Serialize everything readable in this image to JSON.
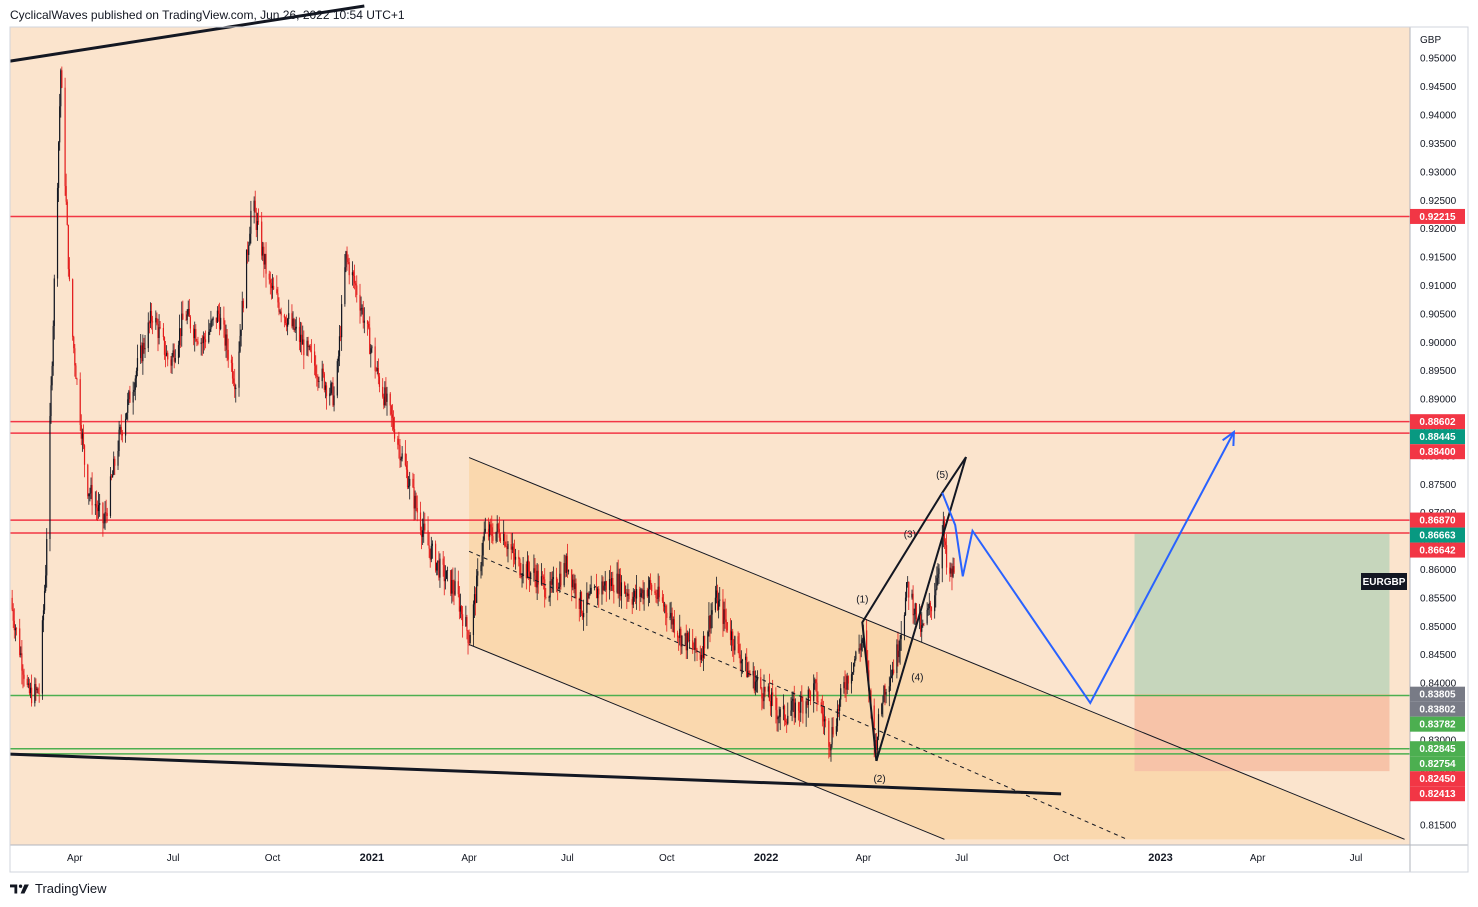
{
  "header": {
    "publisher_line": "CyclicalWaves published on TradingView.com, Jun 26, 2022 10:54 UTC+1"
  },
  "footer": {
    "brand": "TradingView",
    "logo_icon": "tradingview-logo-icon"
  },
  "colors": {
    "background": "#fbe4cd",
    "channel_fill": "#f9d6a8",
    "target_zone": "#c6d6bc",
    "stop_zone": "#f7c3a8",
    "resistance": "#f23645",
    "support": "#4caf50",
    "projection": "#2962ff",
    "candle_up": "#131722",
    "candle_down": "#e31b1b"
  },
  "chart_data": {
    "type": "candlestick",
    "symbol_label": "EURGBP",
    "currency": "GBP",
    "y_range": [
      0.8115,
      0.9555
    ],
    "y_ticks": [
      "0.95000",
      "0.94500",
      "0.94000",
      "0.93500",
      "0.93000",
      "0.92500",
      "0.92000",
      "0.91500",
      "0.91000",
      "0.90500",
      "0.90000",
      "0.89500",
      "0.89000",
      "0.88500",
      "0.88000",
      "0.87500",
      "0.87000",
      "0.86500",
      "0.86000",
      "0.85500",
      "0.85000",
      "0.84500",
      "0.84000",
      "0.83500",
      "0.83000",
      "0.82500",
      "0.82000",
      "0.81500"
    ],
    "x_range": [
      "2020-02-01",
      "2023-08-20"
    ],
    "x_ticks": [
      {
        "label": "Apr",
        "date": "2020-04-01",
        "bold": false
      },
      {
        "label": "Jul",
        "date": "2020-07-01",
        "bold": false
      },
      {
        "label": "Oct",
        "date": "2020-10-01",
        "bold": false
      },
      {
        "label": "2021",
        "date": "2021-01-01",
        "bold": true
      },
      {
        "label": "Apr",
        "date": "2021-04-01",
        "bold": false
      },
      {
        "label": "Jul",
        "date": "2021-07-01",
        "bold": false
      },
      {
        "label": "Oct",
        "date": "2021-10-01",
        "bold": false
      },
      {
        "label": "2022",
        "date": "2022-01-01",
        "bold": true
      },
      {
        "label": "Apr",
        "date": "2022-04-01",
        "bold": false
      },
      {
        "label": "Jul",
        "date": "2022-07-01",
        "bold": false
      },
      {
        "label": "Oct",
        "date": "2022-10-01",
        "bold": false
      },
      {
        "label": "2023",
        "date": "2023-01-01",
        "bold": true
      },
      {
        "label": "Apr",
        "date": "2023-04-01",
        "bold": false
      },
      {
        "label": "Jul",
        "date": "2023-07-01",
        "bold": false
      }
    ],
    "price_path": [
      [
        "2020-02-01",
        0.855
      ],
      [
        "2020-02-18",
        0.838
      ],
      [
        "2020-02-28",
        0.8385
      ],
      [
        "2020-03-05",
        0.86
      ],
      [
        "2020-03-19",
        0.948
      ],
      [
        "2020-03-28",
        0.905
      ],
      [
        "2020-04-12",
        0.875
      ],
      [
        "2020-04-28",
        0.868
      ],
      [
        "2020-05-12",
        0.883
      ],
      [
        "2020-05-28",
        0.895
      ],
      [
        "2020-06-12",
        0.905
      ],
      [
        "2020-06-28",
        0.896
      ],
      [
        "2020-07-12",
        0.905
      ],
      [
        "2020-07-28",
        0.9
      ],
      [
        "2020-08-12",
        0.905
      ],
      [
        "2020-08-28",
        0.893
      ],
      [
        "2020-09-12",
        0.925
      ],
      [
        "2020-09-28",
        0.91
      ],
      [
        "2020-10-12",
        0.905
      ],
      [
        "2020-10-28",
        0.9
      ],
      [
        "2020-11-12",
        0.895
      ],
      [
        "2020-11-28",
        0.89
      ],
      [
        "2020-12-08",
        0.915
      ],
      [
        "2020-12-20",
        0.908
      ],
      [
        "2021-01-05",
        0.895
      ],
      [
        "2021-01-20",
        0.886
      ],
      [
        "2021-02-05",
        0.875
      ],
      [
        "2021-02-20",
        0.865
      ],
      [
        "2021-03-05",
        0.86
      ],
      [
        "2021-03-20",
        0.856
      ],
      [
        "2021-04-01",
        0.848
      ],
      [
        "2021-04-15",
        0.866
      ],
      [
        "2021-05-01",
        0.867
      ],
      [
        "2021-05-15",
        0.861
      ],
      [
        "2021-06-01",
        0.859
      ],
      [
        "2021-06-15",
        0.856
      ],
      [
        "2021-07-01",
        0.861
      ],
      [
        "2021-07-15",
        0.853
      ],
      [
        "2021-08-01",
        0.857
      ],
      [
        "2021-08-15",
        0.858
      ],
      [
        "2021-09-01",
        0.855
      ],
      [
        "2021-09-15",
        0.857
      ],
      [
        "2021-10-01",
        0.853
      ],
      [
        "2021-10-15",
        0.848
      ],
      [
        "2021-11-01",
        0.845
      ],
      [
        "2021-11-15",
        0.855
      ],
      [
        "2021-12-01",
        0.848
      ],
      [
        "2021-12-15",
        0.842
      ],
      [
        "2022-01-01",
        0.838
      ],
      [
        "2022-01-15",
        0.834
      ],
      [
        "2022-02-01",
        0.836
      ],
      [
        "2022-02-15",
        0.839
      ],
      [
        "2022-03-01",
        0.83
      ],
      [
        "2022-03-15",
        0.84
      ],
      [
        "2022-04-01",
        0.848
      ],
      [
        "2022-04-12",
        0.829
      ],
      [
        "2022-04-20",
        0.839
      ],
      [
        "2022-05-01",
        0.844
      ],
      [
        "2022-05-12",
        0.857
      ],
      [
        "2022-05-25",
        0.849
      ],
      [
        "2022-06-05",
        0.855
      ],
      [
        "2022-06-14",
        0.867
      ],
      [
        "2022-06-18",
        0.858
      ],
      [
        "2022-06-25",
        0.86
      ]
    ],
    "horizontal_levels": [
      {
        "price": 0.92215,
        "label": "0.92215",
        "color": "#f23645",
        "line": true
      },
      {
        "price": 0.88602,
        "label": "0.88602",
        "color": "#f23645",
        "line": true
      },
      {
        "price": 0.88445,
        "label": "0.88445",
        "color": "#089981",
        "line": false
      },
      {
        "price": 0.884,
        "label": "0.88400",
        "color": "#f23645",
        "line": true
      },
      {
        "price": 0.8687,
        "label": "0.86870",
        "color": "#f23645",
        "line": true
      },
      {
        "price": 0.86663,
        "label": "0.86663",
        "color": "#089981",
        "line": false
      },
      {
        "price": 0.86642,
        "label": "0.86642",
        "color": "#f23645",
        "line": true
      },
      {
        "price": 0.83805,
        "label": "0.83805",
        "color": "#787b86",
        "line": false
      },
      {
        "price": 0.83802,
        "label": "0.83802",
        "color": "#787b86",
        "line": false
      },
      {
        "price": 0.83782,
        "label": "0.83782",
        "color": "#4caf50",
        "line": true
      },
      {
        "price": 0.82845,
        "label": "0.82845",
        "color": "#4caf50",
        "line": true
      },
      {
        "price": 0.82754,
        "label": "0.82754",
        "color": "#4caf50",
        "line": true
      },
      {
        "price": 0.8245,
        "label": "0.82450",
        "color": "#f23645",
        "line": false
      },
      {
        "price": 0.82413,
        "label": "0.82413",
        "color": "#f23645",
        "line": false
      }
    ],
    "trendlines": [
      {
        "name": "upper-long-trendline",
        "from": [
          "2020-02-01",
          0.9495
        ],
        "to": [
          "2020-12-25",
          0.9592
        ],
        "color": "#131722",
        "width": 3
      },
      {
        "name": "lower-long-trendline",
        "from": [
          "2020-02-01",
          0.8275
        ],
        "to": [
          "2022-10-01",
          0.8205
        ],
        "color": "#131722",
        "width": 3
      },
      {
        "name": "channel-upper-line",
        "from": [
          "2021-04-01",
          0.8797
        ],
        "to": [
          "2023-08-15",
          0.8125
        ],
        "color": "#131722",
        "width": 1
      },
      {
        "name": "channel-lower-line",
        "from": [
          "2021-04-01",
          0.8468
        ],
        "to": [
          "2022-06-15",
          0.8125
        ],
        "color": "#131722",
        "width": 1
      },
      {
        "name": "channel-mid-line",
        "from": [
          "2021-04-01",
          0.8632
        ],
        "to": [
          "2022-12-01",
          0.8125
        ],
        "color": "#131722",
        "width": 1,
        "dashed": true
      }
    ],
    "channel_polygon": [
      [
        "2021-04-01",
        0.8797
      ],
      [
        "2023-08-15",
        0.8125
      ],
      [
        "2022-06-15",
        0.8125
      ],
      [
        "2021-04-01",
        0.8468
      ]
    ],
    "wave_lines": [
      [
        [
          "2022-04-13",
          0.8263
        ],
        [
          "2022-03-31",
          0.8507
        ],
        [
          "2022-06-13",
          0.8735
        ],
        [
          "2022-07-05",
          0.8798
        ]
      ],
      [
        [
          "2022-04-13",
          0.8263
        ],
        [
          "2022-07-05",
          0.8798
        ]
      ]
    ],
    "wave_labels": [
      {
        "text": "(1)",
        "date": "2022-03-31",
        "price": 0.8542
      },
      {
        "text": "(2)",
        "date": "2022-04-16",
        "price": 0.8226
      },
      {
        "text": "(3)",
        "date": "2022-05-14",
        "price": 0.8656
      },
      {
        "text": "(4)",
        "date": "2022-05-21",
        "price": 0.8405
      },
      {
        "text": "(5)",
        "date": "2022-06-13",
        "price": 0.8761
      }
    ],
    "projection_path": [
      [
        "2022-06-13",
        0.8735
      ],
      [
        "2022-06-25",
        0.8678
      ],
      [
        "2022-07-02",
        0.8588
      ],
      [
        "2022-07-11",
        0.8668
      ],
      [
        "2022-10-28",
        0.8365
      ],
      [
        "2023-03-10",
        0.8842
      ]
    ],
    "projection_arrow_tip": [
      "2023-03-10",
      0.8842
    ],
    "target_zone": {
      "from": "2022-12-08",
      "to": "2023-08-01",
      "top": 0.8663,
      "bottom": 0.83805
    },
    "stop_zone": {
      "from": "2022-12-08",
      "to": "2023-08-01",
      "top": 0.83805,
      "bottom": 0.8245
    }
  }
}
